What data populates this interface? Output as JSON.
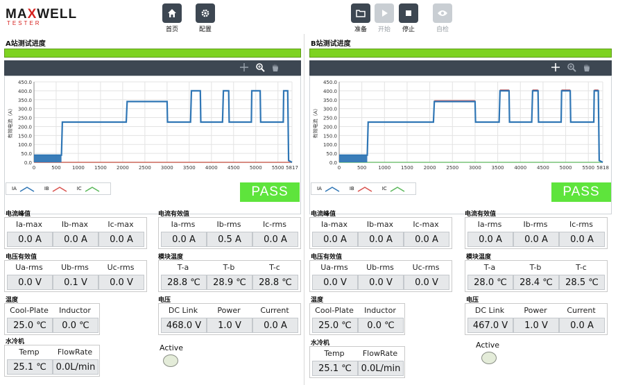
{
  "brand": {
    "name_a": "MA",
    "name_x": "X",
    "name_b": "WELL",
    "sub": "TESTER"
  },
  "toolbar": {
    "home_label": "首页",
    "config_label": "配置",
    "prepare_label": "准备",
    "start_label": "开始",
    "stop_label": "停止",
    "selfcheck_label": "自检"
  },
  "stations": [
    {
      "title": "A站测试进度",
      "progress_percent": 100,
      "result": "PASS",
      "legend": [
        "IA",
        "IB",
        "IC"
      ],
      "groups": {
        "current_peak": {
          "title": "电流峰值",
          "headers": [
            "Ia-max",
            "Ib-max",
            "Ic-max"
          ],
          "values": [
            "0.0 A",
            "0.0 A",
            "0.0 A"
          ]
        },
        "current_rms": {
          "title": "电流有效值",
          "headers": [
            "Ia-rms",
            "Ib-rms",
            "Ic-rms"
          ],
          "values": [
            "0.0 A",
            "0.5 A",
            "0.0 A"
          ]
        },
        "voltage_rms": {
          "title": "电压有效值",
          "headers": [
            "Ua-rms",
            "Ub-rms",
            "Uc-rms"
          ],
          "values": [
            "0.0 V",
            "0.1 V",
            "0.0 V"
          ]
        },
        "module_temp": {
          "title": "模块温度",
          "headers": [
            "T-a",
            "T-b",
            "T-c"
          ],
          "values": [
            "28.8 ℃",
            "28.9 ℃",
            "28.8 ℃"
          ]
        },
        "temperature": {
          "title": "温度",
          "headers": [
            "Cool-Plate",
            "Inductor"
          ],
          "values": [
            "25.0 ℃",
            "0.0 ℃"
          ]
        },
        "voltage": {
          "title": "电压",
          "headers": [
            "DC Link",
            "Power",
            "Current"
          ],
          "values": [
            "468.0 V",
            "1.0 V",
            "0.0 A"
          ]
        },
        "water_cooling": {
          "title": "水冷机",
          "headers": [
            "Temp",
            "FlowRate"
          ],
          "values": [
            "25.1 ℃",
            "0.0L/min"
          ]
        }
      },
      "active_label": "Active"
    },
    {
      "title": "B站测试进度",
      "progress_percent": 100,
      "result": "PASS",
      "legend": [
        "IA",
        "IB",
        "IC"
      ],
      "groups": {
        "current_peak": {
          "title": "电流峰值",
          "headers": [
            "Ia-max",
            "Ib-max",
            "Ic-max"
          ],
          "values": [
            "0.0 A",
            "0.0 A",
            "0.0 A"
          ]
        },
        "current_rms": {
          "title": "电流有效值",
          "headers": [
            "Ia-rms",
            "Ib-rms",
            "Ic-rms"
          ],
          "values": [
            "0.0 A",
            "0.0 A",
            "0.0 A"
          ]
        },
        "voltage_rms": {
          "title": "电压有效值",
          "headers": [
            "Ua-rms",
            "Ub-rms",
            "Uc-rms"
          ],
          "values": [
            "0.0 V",
            "0.0 V",
            "0.0 V"
          ]
        },
        "module_temp": {
          "title": "模块温度",
          "headers": [
            "T-a",
            "T-b",
            "T-c"
          ],
          "values": [
            "28.0 ℃",
            "28.4 ℃",
            "28.5 ℃"
          ]
        },
        "temperature": {
          "title": "温度",
          "headers": [
            "Cool-Plate",
            "Inductor"
          ],
          "values": [
            "25.0 ℃",
            "0.0 ℃"
          ]
        },
        "voltage": {
          "title": "电压",
          "headers": [
            "DC Link",
            "Power",
            "Current"
          ],
          "values": [
            "467.0 V",
            "1.0 V",
            "0.0 A"
          ]
        },
        "water_cooling": {
          "title": "水冷机",
          "headers": [
            "Temp",
            "FlowRate"
          ],
          "values": [
            "25.1 ℃",
            "0.0L/min"
          ]
        }
      },
      "active_label": "Active"
    }
  ],
  "chart_data": [
    {
      "type": "line",
      "ylabel": "有效电流（A）",
      "xlim": [
        0,
        5817
      ],
      "ylim": [
        0,
        450
      ],
      "xticks": [
        0,
        500,
        1000,
        1500,
        2000,
        2500,
        3000,
        3500,
        4000,
        4500,
        5000,
        5500,
        5817
      ],
      "yticks": [
        "0.0",
        "50.0",
        "100.0",
        "150.0",
        "200.0",
        "250.0",
        "300.0",
        "350.0",
        "400.0",
        "450.0"
      ],
      "series": [
        {
          "name": "IA",
          "x": [
            0,
            620,
            640,
            2080,
            2100,
            3000,
            3010,
            3530,
            3550,
            3750,
            3760,
            4250,
            4270,
            4390,
            4400,
            4900,
            4910,
            5100,
            5110,
            5620,
            5630,
            5720,
            5740,
            5817
          ],
          "y": [
            40,
            40,
            225,
            225,
            340,
            340,
            225,
            225,
            400,
            400,
            225,
            225,
            400,
            400,
            225,
            225,
            400,
            400,
            225,
            225,
            400,
            400,
            10,
            0
          ]
        },
        {
          "name": "IB",
          "x": [
            0,
            5817
          ],
          "y": [
            0,
            0
          ]
        },
        {
          "name": "IC",
          "x": [
            0,
            5817
          ],
          "y": [
            0,
            0
          ]
        }
      ],
      "colors": {
        "IA": "#2f76b5",
        "IB": "#d9534f",
        "IC": "#5cb85c"
      }
    },
    {
      "type": "line",
      "ylabel": "有效电流（A）",
      "xlim": [
        0,
        5818
      ],
      "ylim": [
        0,
        450
      ],
      "xticks": [
        0,
        500,
        1000,
        1500,
        2000,
        2500,
        3000,
        3500,
        4000,
        4500,
        5000,
        5500,
        5818
      ],
      "yticks": [
        "0.0",
        "50.0",
        "100.0",
        "150.0",
        "200.0",
        "250.0",
        "300.0",
        "350.0",
        "400.0",
        "450.0"
      ],
      "series": [
        {
          "name": "IA",
          "x": [
            0,
            620,
            640,
            2080,
            2100,
            3000,
            3010,
            3530,
            3550,
            3750,
            3760,
            4250,
            4270,
            4390,
            4400,
            4900,
            4910,
            5100,
            5110,
            5620,
            5630,
            5720,
            5740,
            5818
          ],
          "y": [
            40,
            40,
            225,
            225,
            340,
            340,
            225,
            225,
            400,
            400,
            225,
            225,
            400,
            400,
            225,
            225,
            400,
            400,
            225,
            225,
            400,
            400,
            10,
            0
          ]
        },
        {
          "name": "IB",
          "x": [
            2100,
            3000,
            3550,
            3750,
            4270,
            4390,
            4910,
            5100,
            5630,
            5720
          ],
          "y": [
            345,
            345,
            405,
            405,
            405,
            405,
            405,
            405,
            405,
            405
          ]
        },
        {
          "name": "IC",
          "x": [
            0,
            5818
          ],
          "y": [
            0,
            0
          ]
        }
      ],
      "colors": {
        "IA": "#2f76b5",
        "IB": "#d9534f",
        "IC": "#5cb85c"
      }
    }
  ]
}
